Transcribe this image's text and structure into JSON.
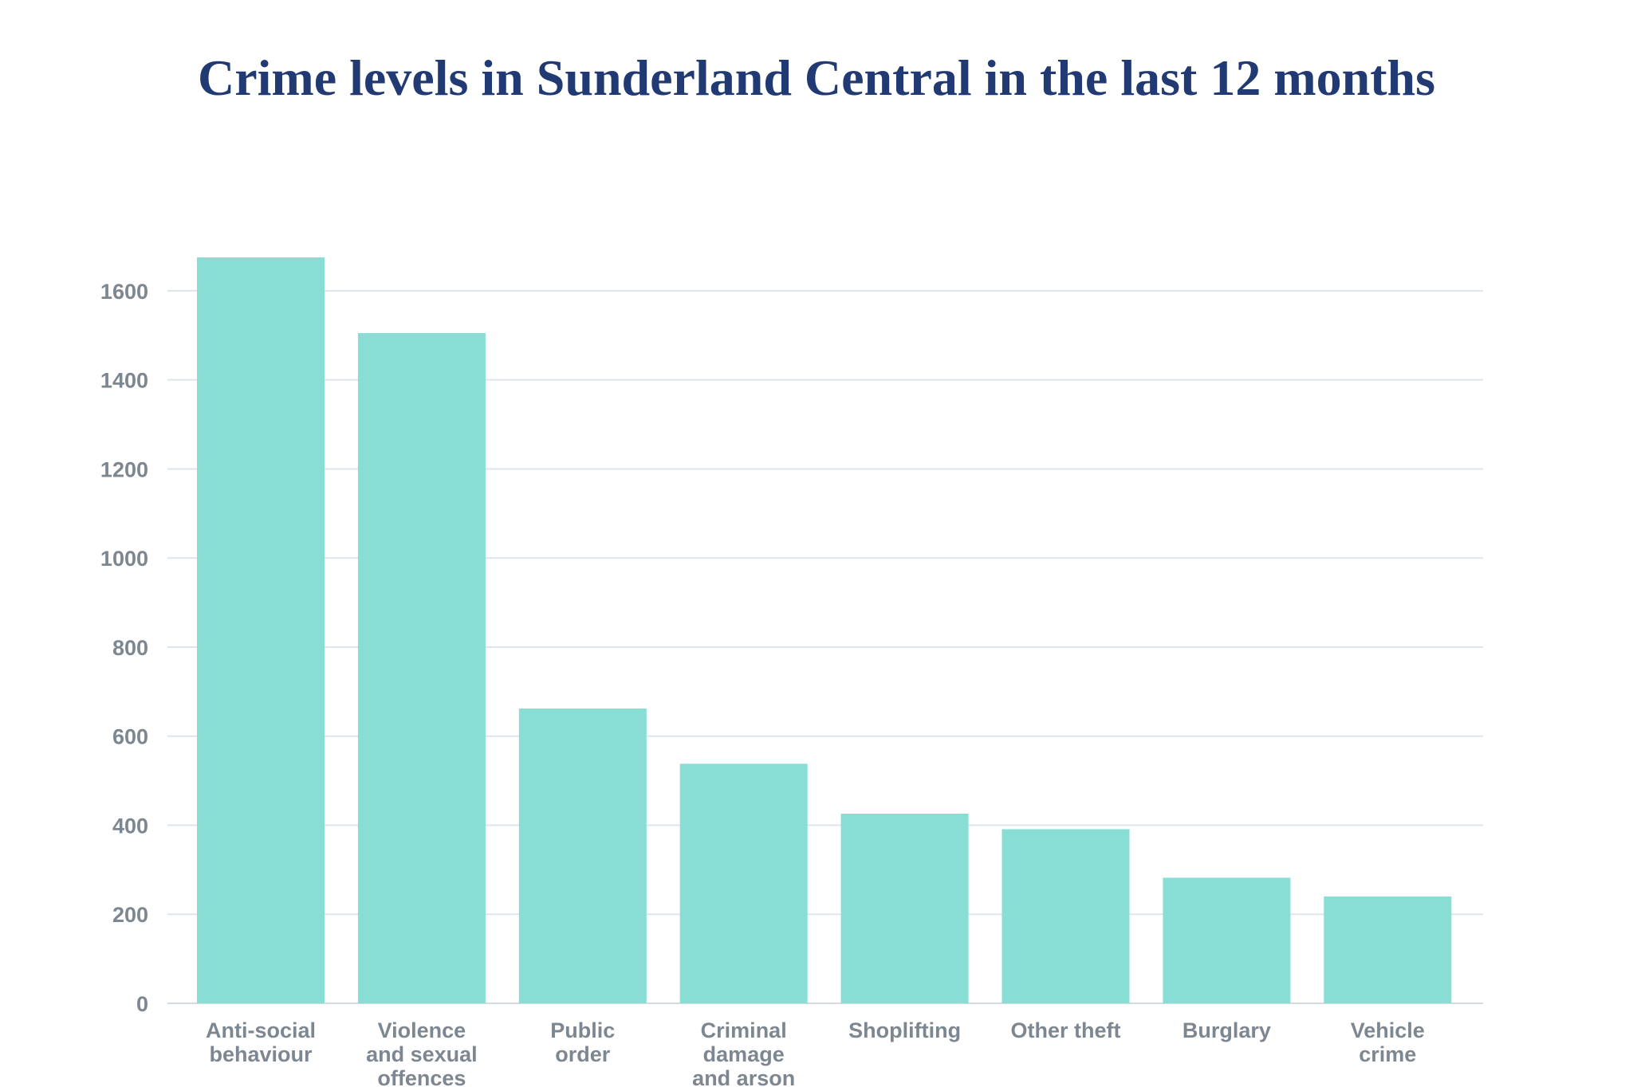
{
  "chart_data": {
    "type": "bar",
    "title": "Crime levels in Sunderland Central in the last 12 months",
    "categories": [
      [
        "Anti-social",
        "behaviour"
      ],
      [
        "Violence",
        "and sexual",
        "offences"
      ],
      [
        "Public",
        "order"
      ],
      [
        "Criminal",
        "damage",
        "and arson"
      ],
      [
        "Shoplifting"
      ],
      [
        "Other theft"
      ],
      [
        "Burglary"
      ],
      [
        "Vehicle",
        "crime"
      ]
    ],
    "values": [
      1675,
      1505,
      662,
      538,
      426,
      391,
      282,
      240
    ],
    "yticks": [
      0,
      200,
      400,
      600,
      800,
      1000,
      1200,
      1400,
      1600
    ],
    "ylim": [
      0,
      1700
    ],
    "grid": true,
    "colors": {
      "bar": "#88ddd5",
      "title": "#213a73",
      "labels": "#7d8791",
      "grid": "#dfe5ea"
    }
  }
}
